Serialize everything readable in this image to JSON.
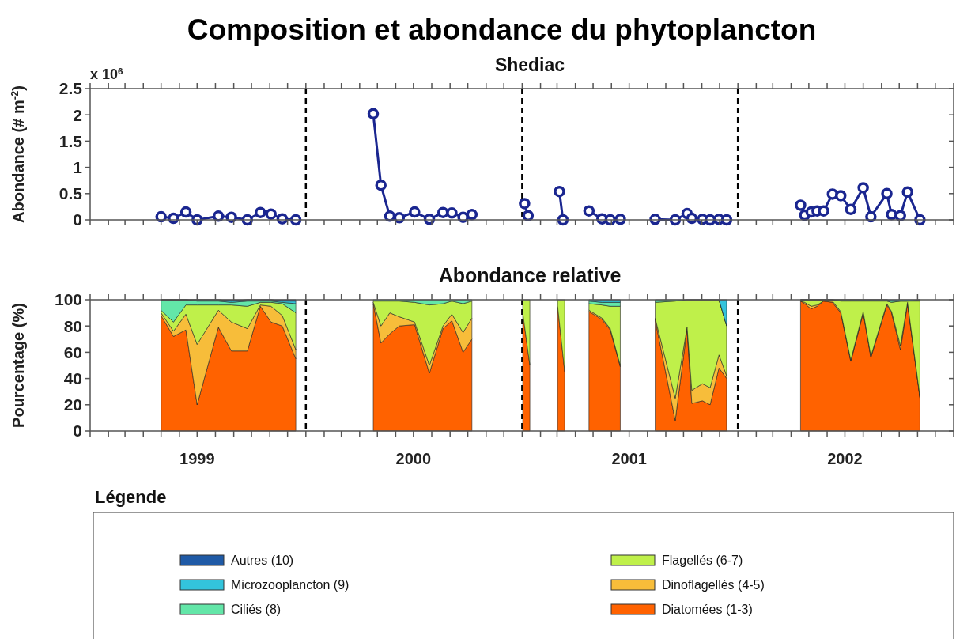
{
  "chart_data": [
    {
      "type": "line",
      "title": "Composition et abondance du phytoplancton",
      "subtitle": "Shediac",
      "ylabel": "Abondance (# m$^{-2}$)",
      "annotations": [
        "x 10$^{6}$"
      ],
      "marker": "circle",
      "tick_labels": "y",
      "xlim": [
        "1999-01-01",
        "2003-01-01"
      ],
      "ylim": [
        0,
        2.5
      ],
      "yticks": [
        0,
        0.5,
        1,
        1.5,
        2,
        2.5
      ],
      "xticks": [
        {
          "value": "1999-01-01",
          "label": null
        },
        {
          "value": "1999-02-01",
          "label": null
        },
        {
          "value": "1999-03-01",
          "label": null
        },
        {
          "value": "1999-04-01",
          "label": null
        },
        {
          "value": "1999-05-01",
          "label": null
        },
        {
          "value": "1999-06-01",
          "label": null
        },
        {
          "value": "1999-07-01",
          "label": null
        },
        {
          "value": "1999-08-01",
          "label": null
        },
        {
          "value": "1999-09-01",
          "label": null
        },
        {
          "value": "1999-10-01",
          "label": null
        },
        {
          "value": "1999-11-01",
          "label": null
        },
        {
          "value": "1999-12-01",
          "label": null
        },
        {
          "value": "2000-01-01",
          "label": null
        },
        {
          "value": "2000-02-01",
          "label": null
        },
        {
          "value": "2000-03-01",
          "label": null
        },
        {
          "value": "2000-04-01",
          "label": null
        },
        {
          "value": "2000-05-01",
          "label": null
        },
        {
          "value": "2000-06-01",
          "label": null
        },
        {
          "value": "2000-07-01",
          "label": null
        },
        {
          "value": "2000-08-01",
          "label": null
        },
        {
          "value": "2000-09-01",
          "label": null
        },
        {
          "value": "2000-10-01",
          "label": null
        },
        {
          "value": "2000-11-01",
          "label": null
        },
        {
          "value": "2000-12-01",
          "label": null
        },
        {
          "value": "2001-01-01",
          "label": null
        },
        {
          "value": "2001-02-01",
          "label": null
        },
        {
          "value": "2001-03-01",
          "label": null
        },
        {
          "value": "2001-04-01",
          "label": null
        },
        {
          "value": "2001-05-01",
          "label": null
        },
        {
          "value": "2001-06-01",
          "label": null
        },
        {
          "value": "2001-07-01",
          "label": null
        },
        {
          "value": "2001-08-01",
          "label": null
        },
        {
          "value": "2001-09-01",
          "label": null
        },
        {
          "value": "2001-10-01",
          "label": null
        },
        {
          "value": "2001-11-01",
          "label": null
        },
        {
          "value": "2001-12-01",
          "label": null
        },
        {
          "value": "2002-01-01",
          "label": null
        },
        {
          "value": "2002-02-01",
          "label": null
        },
        {
          "value": "2002-03-01",
          "label": null
        },
        {
          "value": "2002-04-01",
          "label": null
        },
        {
          "value": "2002-05-01",
          "label": null
        },
        {
          "value": "2002-06-01",
          "label": null
        },
        {
          "value": "2002-07-01",
          "label": null
        },
        {
          "value": "2002-08-01",
          "label": null
        },
        {
          "value": "2002-09-01",
          "label": null
        },
        {
          "value": "2002-10-01",
          "label": null
        },
        {
          "value": "2002-11-01",
          "label": null
        },
        {
          "value": "2002-12-01",
          "label": null
        },
        {
          "value": "2003-01-01",
          "label": null
        }
      ],
      "ref_lines": [
        {
          "axis": "x",
          "value": "2000-01-01",
          "color": "#000000",
          "line_style": "dashed"
        },
        {
          "axis": "x",
          "value": "2001-01-01",
          "color": "#000000",
          "line_style": "dashed"
        },
        {
          "axis": "x",
          "value": "2002-01-01",
          "color": "#000000",
          "line_style": "dashed"
        }
      ],
      "x": [
        "1999-05-01",
        "1999-05-22",
        "1999-06-12",
        "1999-07-01",
        "1999-08-06",
        "1999-08-28",
        "1999-09-24",
        "1999-10-16",
        "1999-11-03",
        "1999-11-22",
        "1999-12-15",
        "2000-02-15",
        "2000-04-24",
        "2000-05-07",
        "2000-05-22",
        "2000-06-07",
        "2000-07-03",
        "2000-07-28",
        "2000-08-20",
        "2000-09-04",
        "2000-09-23",
        "2000-10-08",
        "2000-11-20",
        "2001-01-05",
        "2001-01-11",
        "2001-02-07",
        "2001-03-05",
        "2001-03-11",
        "2001-04-01",
        "2001-04-24",
        "2001-05-16",
        "2001-05-30",
        "2001-06-16",
        "2001-07-15",
        "2001-08-14",
        "2001-09-17",
        "2001-10-07",
        "2001-10-15",
        "2001-11-02",
        "2001-11-15",
        "2001-11-30",
        "2001-12-13",
        "2002-02-15",
        "2002-04-17",
        "2002-04-24",
        "2002-05-05",
        "2002-05-15",
        "2002-05-26",
        "2002-06-10",
        "2002-06-24",
        "2002-07-11",
        "2002-08-01",
        "2002-08-14",
        "2002-09-10",
        "2002-09-18",
        "2002-10-03",
        "2002-10-15",
        "2002-11-05"
      ],
      "series": [
        {
          "color": "#1a2690",
          "values": [
            0.06,
            0.03,
            0.15,
            0,
            0.07,
            0.05,
            0,
            0.14,
            0.11,
            0.02,
            0,
            null,
            2.02,
            0.66,
            0.07,
            0.04,
            0.15,
            0.01,
            0.14,
            0.13,
            0.05,
            0.1,
            null,
            0.31,
            0.08,
            null,
            0.54,
            0,
            null,
            0.17,
            0.02,
            0,
            0.01,
            null,
            0.01,
            0,
            0.12,
            0.03,
            0.01,
            0,
            0.01,
            0,
            null,
            0.28,
            0.09,
            0.15,
            0.17,
            0.17,
            0.49,
            0.46,
            0.2,
            0.61,
            0.06,
            0.5,
            0.1,
            0.08,
            0.53,
            0
          ]
        }
      ]
    },
    {
      "type": "area",
      "stacked": true,
      "title": "Abondance relative",
      "ylabel": "Pourcentage (%)",
      "legend": "bottom",
      "legend_title": "Légende",
      "xlim": [
        "1999-01-01",
        "2003-01-01"
      ],
      "ylim": [
        0,
        100
      ],
      "yticks": [
        0,
        20,
        40,
        60,
        80,
        100
      ],
      "xticks": [
        {
          "value": "1999-01-01",
          "label": null
        },
        {
          "value": "1999-02-01",
          "label": null
        },
        {
          "value": "1999-03-01",
          "label": null
        },
        {
          "value": "1999-04-01",
          "label": null
        },
        {
          "value": "1999-05-01",
          "label": null
        },
        {
          "value": "1999-06-01",
          "label": null
        },
        {
          "value": "1999-07-01",
          "label": "1999"
        },
        {
          "value": "1999-08-01",
          "label": null
        },
        {
          "value": "1999-09-01",
          "label": null
        },
        {
          "value": "1999-10-01",
          "label": null
        },
        {
          "value": "1999-11-01",
          "label": null
        },
        {
          "value": "1999-12-01",
          "label": null
        },
        {
          "value": "2000-01-01",
          "label": null
        },
        {
          "value": "2000-02-01",
          "label": null
        },
        {
          "value": "2000-03-01",
          "label": null
        },
        {
          "value": "2000-04-01",
          "label": null
        },
        {
          "value": "2000-05-01",
          "label": null
        },
        {
          "value": "2000-06-01",
          "label": null
        },
        {
          "value": "2000-07-01",
          "label": "2000"
        },
        {
          "value": "2000-08-01",
          "label": null
        },
        {
          "value": "2000-09-01",
          "label": null
        },
        {
          "value": "2000-10-01",
          "label": null
        },
        {
          "value": "2000-11-01",
          "label": null
        },
        {
          "value": "2000-12-01",
          "label": null
        },
        {
          "value": "2001-01-01",
          "label": null
        },
        {
          "value": "2001-02-01",
          "label": null
        },
        {
          "value": "2001-03-01",
          "label": null
        },
        {
          "value": "2001-04-01",
          "label": null
        },
        {
          "value": "2001-05-01",
          "label": null
        },
        {
          "value": "2001-06-01",
          "label": null
        },
        {
          "value": "2001-07-01",
          "label": "2001"
        },
        {
          "value": "2001-08-01",
          "label": null
        },
        {
          "value": "2001-09-01",
          "label": null
        },
        {
          "value": "2001-10-01",
          "label": null
        },
        {
          "value": "2001-11-01",
          "label": null
        },
        {
          "value": "2001-12-01",
          "label": null
        },
        {
          "value": "2002-01-01",
          "label": null
        },
        {
          "value": "2002-02-01",
          "label": null
        },
        {
          "value": "2002-03-01",
          "label": null
        },
        {
          "value": "2002-04-01",
          "label": null
        },
        {
          "value": "2002-05-01",
          "label": null
        },
        {
          "value": "2002-06-01",
          "label": null
        },
        {
          "value": "2002-07-01",
          "label": "2002"
        },
        {
          "value": "2002-08-01",
          "label": null
        },
        {
          "value": "2002-09-01",
          "label": null
        },
        {
          "value": "2002-10-01",
          "label": null
        },
        {
          "value": "2002-11-01",
          "label": null
        },
        {
          "value": "2002-12-01",
          "label": null
        },
        {
          "value": "2003-01-01",
          "label": null
        }
      ],
      "ref_lines": [
        {
          "axis": "x",
          "value": "2000-01-01",
          "color": "#000000",
          "line_style": "dashed"
        },
        {
          "axis": "x",
          "value": "2001-01-01",
          "color": "#000000",
          "line_style": "dashed"
        },
        {
          "axis": "x",
          "value": "2002-01-01",
          "color": "#000000",
          "line_style": "dashed"
        }
      ],
      "x": [
        "1999-05-01",
        "1999-05-22",
        "1999-06-12",
        "1999-07-01",
        "1999-08-06",
        "1999-08-28",
        "1999-09-24",
        "1999-10-16",
        "1999-11-03",
        "1999-11-22",
        "1999-12-15",
        "2000-02-15",
        "2000-04-24",
        "2000-05-07",
        "2000-05-22",
        "2000-06-07",
        "2000-07-03",
        "2000-07-28",
        "2000-08-20",
        "2000-09-04",
        "2000-09-23",
        "2000-10-08",
        "2000-11-20",
        "2001-01-02",
        "2001-01-14",
        "2001-02-07",
        "2001-03-02",
        "2001-03-14",
        "2001-04-01",
        "2001-04-24",
        "2001-05-16",
        "2001-05-30",
        "2001-06-16",
        "2001-07-15",
        "2001-08-14",
        "2001-09-17",
        "2001-10-07",
        "2001-10-15",
        "2001-11-02",
        "2001-11-15",
        "2001-11-30",
        "2001-12-13",
        "2002-02-15",
        "2002-04-17",
        "2002-04-24",
        "2002-05-05",
        "2002-05-15",
        "2002-05-26",
        "2002-06-10",
        "2002-06-24",
        "2002-07-11",
        "2002-08-01",
        "2002-08-14",
        "2002-09-10",
        "2002-09-18",
        "2002-10-03",
        "2002-10-15",
        "2002-11-05"
      ],
      "series": [
        {
          "name": "Diatomées (1-3)",
          "color": "#ff6200",
          "values": [
            88,
            72,
            77,
            20,
            79,
            61,
            61,
            95,
            83,
            80,
            55,
            null,
            97,
            67,
            74,
            80,
            81,
            44,
            78,
            84,
            60,
            70,
            null,
            90,
            50,
            null,
            95,
            45,
            null,
            91,
            85,
            77,
            49,
            null,
            85,
            8,
            78,
            21,
            23,
            20,
            48,
            40,
            null,
            99,
            97,
            93,
            95,
            99,
            98,
            90,
            53,
            90,
            56,
            96,
            90,
            62,
            97,
            25
          ]
        },
        {
          "name": "Dinoflagellés (4-5)",
          "color": "#f7bd3a",
          "values": [
            2,
            4,
            12,
            46,
            13,
            22,
            17,
            1,
            12,
            8,
            7,
            null,
            1,
            13,
            16,
            7,
            2,
            6,
            2,
            5,
            15,
            16,
            null,
            null,
            null,
            null,
            null,
            null,
            null,
            1,
            1,
            1,
            1,
            null,
            1,
            17,
            1,
            10,
            13,
            13,
            10,
            2,
            null,
            0,
            1,
            2,
            1,
            0,
            1,
            1,
            1,
            1,
            1,
            1,
            1,
            3,
            1,
            1
          ]
        },
        {
          "name": "Flagellés (6-7)",
          "color": "#bff04a",
          "values": [
            2,
            7,
            7,
            30,
            4,
            13,
            17,
            2,
            3,
            9,
            28,
            null,
            1,
            19,
            9,
            12,
            15,
            46,
            17,
            10,
            22,
            13,
            null,
            10,
            50,
            null,
            5,
            55,
            null,
            5,
            10,
            17,
            45,
            null,
            12,
            74,
            21,
            69,
            64,
            67,
            42,
            38,
            null,
            1,
            2,
            5,
            4,
            1,
            1,
            8,
            45,
            8,
            42,
            2,
            7,
            34,
            1,
            73
          ]
        },
        {
          "name": "Ciliés (8)",
          "color": "#63e6a8",
          "values": [
            8,
            17,
            4,
            3,
            3,
            2,
            4,
            1,
            1,
            1,
            7,
            null,
            1,
            1,
            1,
            1,
            2,
            4,
            3,
            1,
            3,
            1,
            null,
            null,
            null,
            null,
            null,
            null,
            null,
            2,
            2,
            3,
            3,
            null,
            2,
            1,
            0,
            0,
            0,
            0,
            0,
            0,
            null,
            0,
            0,
            0,
            0,
            0,
            0,
            1,
            1,
            1,
            1,
            1,
            1,
            0,
            0,
            1
          ]
        },
        {
          "name": "Microzooplancton (9)",
          "color": "#33c4dc",
          "values": [
            0,
            0,
            0,
            1,
            1,
            1,
            1,
            1,
            1,
            1,
            2,
            null,
            null,
            null,
            null,
            null,
            null,
            null,
            null,
            null,
            null,
            null,
            null,
            null,
            null,
            null,
            null,
            null,
            null,
            1,
            2,
            2,
            2,
            null,
            null,
            null,
            null,
            null,
            null,
            null,
            0,
            20,
            null,
            0,
            0,
            0,
            0,
            0,
            0,
            0,
            0,
            0,
            0,
            0,
            1,
            1,
            1,
            0
          ]
        },
        {
          "name": "Autres (10)",
          "color": "#1f5aa6",
          "values": [
            0,
            0,
            0,
            0,
            0,
            1,
            0,
            0,
            0,
            1,
            1,
            null,
            null,
            null,
            null,
            null,
            null,
            null,
            null,
            null,
            null,
            null,
            null,
            null,
            null,
            null,
            null,
            null,
            null,
            null,
            null,
            null,
            null,
            null,
            null,
            null,
            null,
            null,
            null,
            null,
            null,
            null,
            null,
            null,
            null,
            null,
            null,
            null,
            null,
            null,
            null,
            null,
            null,
            null,
            null,
            null,
            null,
            null
          ]
        }
      ]
    }
  ]
}
